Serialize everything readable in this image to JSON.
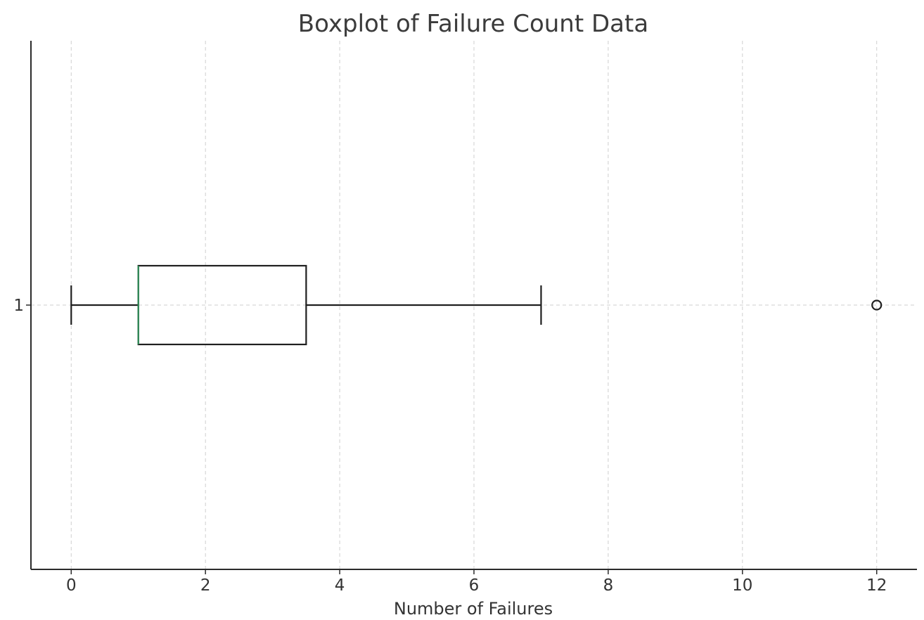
{
  "chart_data": {
    "type": "box",
    "orientation": "horizontal",
    "title": "Boxplot of Failure Count Data",
    "xlabel": "Number of Failures",
    "ylabel": "",
    "xlim": [
      -0.6,
      12.6
    ],
    "x_ticks": [
      0,
      2,
      4,
      6,
      8,
      10,
      12
    ],
    "y_tick_labels": [
      "1"
    ],
    "grid": true,
    "boxes": [
      {
        "label": "1",
        "whisker_low": 0,
        "q1": 1,
        "median": 1,
        "q3": 3.5,
        "whisker_high": 7,
        "outliers": [
          12
        ]
      }
    ],
    "colors": {
      "median": "#2e8b57",
      "box": "#1f1f1f",
      "grid": "#cfcfcf",
      "text": "#333333"
    }
  }
}
